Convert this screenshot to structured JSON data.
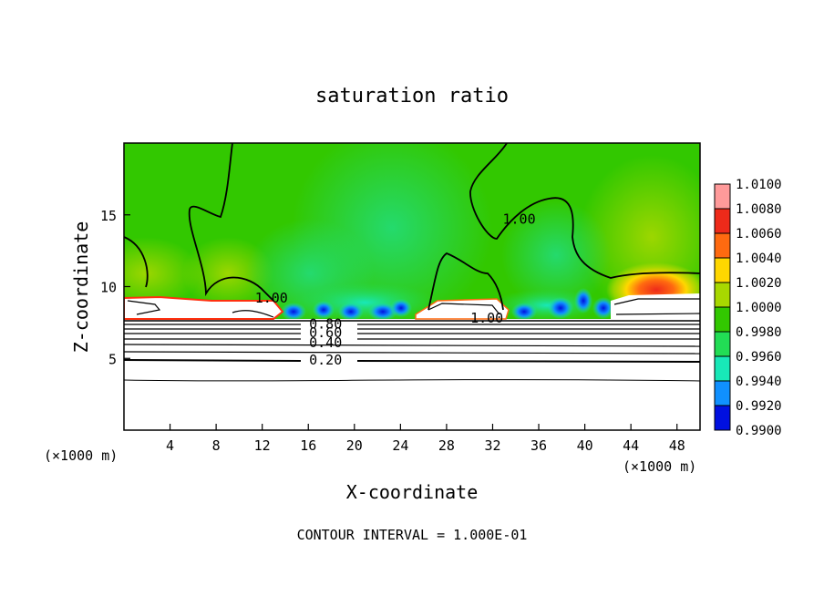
{
  "chart_data": {
    "type": "heatmap",
    "title": "saturation ratio",
    "xlabel": "X-coordinate",
    "ylabel": "Z-coordinate",
    "x_unit_left": "(×1000 m)",
    "x_unit_right": "(×1000 m)",
    "footer": "CONTOUR INTERVAL = 1.000E-01",
    "xlim": [
      0,
      50
    ],
    "ylim": [
      0,
      20
    ],
    "x_ticks": [
      4,
      8,
      12,
      16,
      20,
      24,
      28,
      32,
      36,
      40,
      44,
      48
    ],
    "y_ticks": [
      5,
      10,
      15
    ],
    "colorbar": {
      "labels": [
        "1.0100",
        "1.0080",
        "1.0060",
        "1.0040",
        "1.0020",
        "1.0000",
        "0.9980",
        "0.9960",
        "0.9940",
        "0.9920",
        "0.9900"
      ],
      "colors": [
        "#ff9a9a",
        "#ee2a1a",
        "#ff6a10",
        "#ffd700",
        "#a8d800",
        "#32c800",
        "#22dd55",
        "#18e8b8",
        "#1090ff",
        "#0010e0",
        "#6020a8"
      ]
    },
    "contour_labels": [
      {
        "text": "1.00",
        "x": 12.8,
        "z": 9.2
      },
      {
        "text": "1.00",
        "x": 34.3,
        "z": 14.7
      },
      {
        "text": "1.00",
        "x": 31.5,
        "z": 7.8
      },
      {
        "text": "0.80",
        "x": 17.5,
        "z": 7.4
      },
      {
        "text": "0.60",
        "x": 17.5,
        "z": 6.8
      },
      {
        "text": "0.40",
        "x": 17.5,
        "z": 6.1
      },
      {
        "text": "0.20",
        "x": 17.5,
        "z": 4.9
      }
    ]
  }
}
